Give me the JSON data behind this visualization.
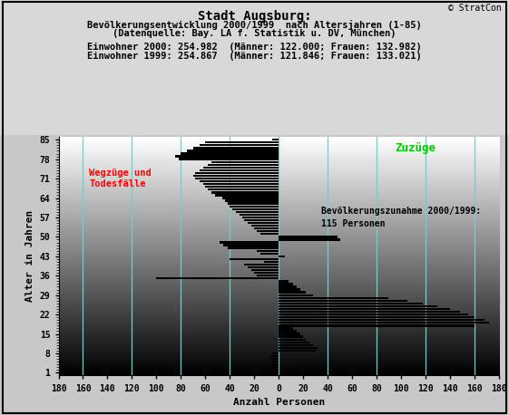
{
  "title_line1": "Stadt Augsburg:",
  "title_line2": "Bevölkerungsentwicklung 2000/1999  nach Altersjahren (1-85)",
  "title_line3": "(Datenquelle: Bay. LA f. Statistik u. DV, München)",
  "info_line1": "Einwohner 2000: 254.982  (Männer: 122.000; Frauen: 132.982)",
  "info_line2": "Einwohner 1999: 254.867  (Männer: 121.846; Frauen: 133.021)",
  "xlabel": "Anzahl Personen",
  "ylabel": "Alter in Jahren",
  "copyright": "© StratCon",
  "label_wegzuege": "Wegzüge und\nTodesfälle",
  "label_zuzuege": "Zuzüge",
  "label_bev": "Bevölkerungszunahme 2000/1999:\n115 Personen",
  "bar_color": "#000000",
  "cyan_line_color": "#00ffff",
  "ylim": [
    0,
    86
  ],
  "xlim": [
    -180,
    180
  ],
  "xticks": [
    -180,
    -160,
    -140,
    -120,
    -100,
    -80,
    -60,
    -40,
    -20,
    0,
    20,
    40,
    60,
    80,
    100,
    120,
    140,
    160,
    180
  ],
  "xticklabels": [
    "180",
    "160",
    "140",
    "120",
    "100",
    "80",
    "60",
    "40",
    "20",
    "0",
    "20",
    "40",
    "60",
    "80",
    "100",
    "120",
    "140",
    "160",
    "180"
  ],
  "yticks": [
    1,
    8,
    15,
    22,
    29,
    36,
    43,
    50,
    57,
    64,
    71,
    78,
    85
  ],
  "cyan_lines_x": [
    -160,
    -120,
    -80,
    -40,
    0,
    40,
    80,
    120,
    160
  ],
  "bar_data": [
    [
      1,
      -3
    ],
    [
      2,
      -4
    ],
    [
      3,
      -5
    ],
    [
      4,
      -6
    ],
    [
      5,
      -5
    ],
    [
      6,
      -6
    ],
    [
      7,
      -7
    ],
    [
      8,
      -5
    ],
    [
      9,
      30
    ],
    [
      10,
      32
    ],
    [
      11,
      28
    ],
    [
      12,
      25
    ],
    [
      13,
      22
    ],
    [
      14,
      20
    ],
    [
      15,
      18
    ],
    [
      16,
      15
    ],
    [
      17,
      12
    ],
    [
      18,
      160
    ],
    [
      19,
      172
    ],
    [
      20,
      168
    ],
    [
      21,
      160
    ],
    [
      22,
      155
    ],
    [
      23,
      148
    ],
    [
      24,
      140
    ],
    [
      25,
      130
    ],
    [
      26,
      118
    ],
    [
      27,
      105
    ],
    [
      28,
      90
    ],
    [
      29,
      28
    ],
    [
      30,
      22
    ],
    [
      31,
      18
    ],
    [
      32,
      15
    ],
    [
      33,
      12
    ],
    [
      34,
      8
    ],
    [
      35,
      -100
    ],
    [
      36,
      -18
    ],
    [
      37,
      -20
    ],
    [
      38,
      -22
    ],
    [
      39,
      -25
    ],
    [
      40,
      -28
    ],
    [
      41,
      -12
    ],
    [
      42,
      -40
    ],
    [
      43,
      5
    ],
    [
      44,
      -15
    ],
    [
      45,
      -18
    ],
    [
      46,
      -42
    ],
    [
      47,
      -45
    ],
    [
      48,
      -48
    ],
    [
      49,
      50
    ],
    [
      50,
      48
    ],
    [
      51,
      -15
    ],
    [
      52,
      -18
    ],
    [
      53,
      -20
    ],
    [
      54,
      -22
    ],
    [
      55,
      -25
    ],
    [
      56,
      -28
    ],
    [
      57,
      -30
    ],
    [
      58,
      -32
    ],
    [
      59,
      -35
    ],
    [
      60,
      -38
    ],
    [
      61,
      -40
    ],
    [
      62,
      -42
    ],
    [
      63,
      -44
    ],
    [
      64,
      -46
    ],
    [
      65,
      -52
    ],
    [
      66,
      -55
    ],
    [
      67,
      -58
    ],
    [
      68,
      -60
    ],
    [
      69,
      -62
    ],
    [
      70,
      -65
    ],
    [
      71,
      -68
    ],
    [
      72,
      -70
    ],
    [
      73,
      -68
    ],
    [
      74,
      -65
    ],
    [
      75,
      -62
    ],
    [
      76,
      -58
    ],
    [
      77,
      -55
    ],
    [
      78,
      -82
    ],
    [
      79,
      -85
    ],
    [
      80,
      -80
    ],
    [
      81,
      -75
    ],
    [
      82,
      -70
    ],
    [
      83,
      -65
    ],
    [
      84,
      -60
    ],
    [
      85,
      -5
    ]
  ]
}
